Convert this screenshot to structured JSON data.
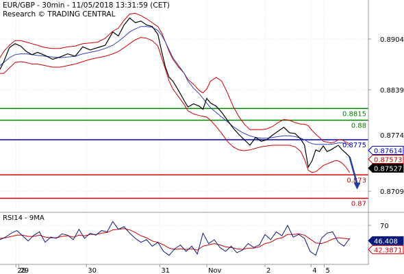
{
  "header": {
    "title": "EUR/GBP - 30min - 11/05/2018 13:31:59 (CET)",
    "subtitle": "Research © TRADING CENTRAL"
  },
  "colors": {
    "price": "#000000",
    "bollinger": "#cc0000",
    "moving_average": "#2f3fbf",
    "support": "#cc0000",
    "resistance": "#008000",
    "pivot": "#0000bb",
    "arrow": "#1f3fa0",
    "grid": "#e6e6e6",
    "rsi": "#0a1a7a",
    "rsi_ma": "#cc0000"
  },
  "chart_data": [
    {
      "type": "line",
      "name": "price-panel",
      "y_ticks": [
        0.8904,
        0.8839,
        0.8709
      ],
      "ylim": [
        0.8682,
        0.8954
      ],
      "grid": true,
      "x_labels": [
        "28",
        "29",
        "30",
        "31",
        "Nov",
        "2",
        "4",
        "5"
      ],
      "x_label_positions": [
        8.5,
        10,
        46,
        85,
        110,
        141,
        165.5,
        172.5
      ],
      "x_range": [
        0,
        196
      ],
      "price_x": [
        0,
        2,
        5,
        8,
        11,
        14,
        17,
        20,
        24,
        28,
        32,
        36,
        40,
        44,
        48,
        52,
        56,
        60,
        63,
        66,
        69,
        72,
        75,
        78,
        81,
        84,
        86,
        88,
        90,
        92,
        95,
        98,
        100,
        103,
        106,
        108,
        110,
        112,
        115,
        118,
        121,
        124,
        127,
        130,
        133,
        136,
        139,
        142,
        145,
        148,
        151,
        154,
        157,
        160,
        162,
        164,
        166,
        168,
        170,
        172,
        174,
        176,
        178,
        180,
        182,
        184,
        186
      ],
      "price_y": [
        0.8865,
        0.8875,
        0.8893,
        0.8898,
        0.8895,
        0.8888,
        0.8884,
        0.8887,
        0.8883,
        0.8878,
        0.8881,
        0.8885,
        0.8882,
        0.8894,
        0.889,
        0.8893,
        0.8896,
        0.8913,
        0.8908,
        0.8922,
        0.8931,
        0.8925,
        0.8927,
        0.8922,
        0.892,
        0.891,
        0.8888,
        0.8868,
        0.8855,
        0.885,
        0.8838,
        0.8825,
        0.8817,
        0.8821,
        0.8818,
        0.8814,
        0.8828,
        0.8822,
        0.8818,
        0.881,
        0.88,
        0.879,
        0.8782,
        0.8775,
        0.8768,
        0.8778,
        0.8773,
        0.8775,
        0.8781,
        0.8786,
        0.8791,
        0.8784,
        0.8783,
        0.8776,
        0.8768,
        0.874,
        0.8748,
        0.8762,
        0.876,
        0.8767,
        0.876,
        0.8762,
        0.8765,
        0.8768,
        0.8762,
        0.8758,
        0.8753
      ],
      "bollinger_upper_y": [
        0.888,
        0.8888,
        0.8896,
        0.8902,
        0.8902,
        0.89,
        0.8898,
        0.8896,
        0.8893,
        0.8892,
        0.8892,
        0.8894,
        0.8895,
        0.8898,
        0.8899,
        0.89,
        0.8905,
        0.8914,
        0.8918,
        0.8928,
        0.8936,
        0.8937,
        0.8934,
        0.893,
        0.8925,
        0.892,
        0.8912,
        0.89,
        0.8888,
        0.8878,
        0.8868,
        0.886,
        0.8852,
        0.8846,
        0.8838,
        0.8835,
        0.884,
        0.885,
        0.8855,
        0.885,
        0.8835,
        0.8818,
        0.8805,
        0.8795,
        0.8788,
        0.8788,
        0.8788,
        0.8789,
        0.8792,
        0.8797,
        0.8801,
        0.88,
        0.8797,
        0.8795,
        0.8795,
        0.8793,
        0.8787,
        0.8782,
        0.8778,
        0.8773,
        0.8772,
        0.8771,
        0.8772,
        0.8775,
        0.8775,
        0.8772,
        0.877
      ],
      "bollinger_lower_y": [
        0.886,
        0.886,
        0.8867,
        0.8874,
        0.8875,
        0.8874,
        0.8872,
        0.8872,
        0.887,
        0.8868,
        0.8868,
        0.887,
        0.8872,
        0.8875,
        0.8878,
        0.888,
        0.8882,
        0.8885,
        0.8888,
        0.8893,
        0.8898,
        0.8903,
        0.8906,
        0.8905,
        0.8902,
        0.8895,
        0.888,
        0.8865,
        0.885,
        0.884,
        0.883,
        0.882,
        0.8812,
        0.8808,
        0.8806,
        0.8805,
        0.8804,
        0.88,
        0.8792,
        0.8783,
        0.8773,
        0.8766,
        0.8762,
        0.8761,
        0.8762,
        0.8764,
        0.8766,
        0.8767,
        0.8768,
        0.8768,
        0.8768,
        0.8768,
        0.8766,
        0.876,
        0.875,
        0.8736,
        0.8733,
        0.8734,
        0.8738,
        0.8742,
        0.8744,
        0.8746,
        0.8748,
        0.8748,
        0.8745,
        0.874,
        0.8733
      ],
      "moving_average_y": [
        0.887,
        0.8874,
        0.888,
        0.8884,
        0.8885,
        0.8885,
        0.8884,
        0.8883,
        0.8882,
        0.8881,
        0.888,
        0.8881,
        0.8882,
        0.8885,
        0.8887,
        0.8889,
        0.8892,
        0.8896,
        0.8901,
        0.8907,
        0.8913,
        0.8917,
        0.892,
        0.892,
        0.8919,
        0.8915,
        0.8909,
        0.89,
        0.889,
        0.888,
        0.887,
        0.886,
        0.885,
        0.8841,
        0.8834,
        0.8828,
        0.8822,
        0.8816,
        0.881,
        0.8804,
        0.8798,
        0.8792,
        0.8787,
        0.8783,
        0.878,
        0.8778,
        0.8777,
        0.8777,
        0.8778,
        0.8779,
        0.878,
        0.878,
        0.8779,
        0.8777,
        0.8775,
        0.8772,
        0.877,
        0.8769,
        0.8769,
        0.8769,
        0.8769,
        0.8769,
        0.877,
        0.8771,
        0.8771,
        0.877,
        0.8768
      ],
      "forecast_arrow": {
        "from": [
          186,
          0.8753
        ],
        "to": [
          190,
          0.8713
        ]
      },
      "levels": [
        {
          "name": "resistance-2",
          "value": 0.8815,
          "label": "0.8815",
          "kind": "resistance"
        },
        {
          "name": "resistance-1",
          "value": 0.88,
          "label": "0.88",
          "kind": "resistance"
        },
        {
          "name": "pivot",
          "value": 0.8775,
          "label": "0.8775",
          "kind": "pivot"
        },
        {
          "name": "support-1",
          "value": 0.873,
          "label": "0.873",
          "kind": "support"
        },
        {
          "name": "support-2",
          "value": 0.87,
          "label": "0.87",
          "kind": "support"
        }
      ],
      "price_tags": [
        {
          "name": "last-price",
          "value": 0.87614,
          "label": "0.87614",
          "style": "blue"
        },
        {
          "name": "offer-price",
          "value": 0.87573,
          "label": "0.87573",
          "style": "red"
        },
        {
          "name": "bid-price",
          "value": 0.87527,
          "label": "0.87527",
          "style": "black"
        }
      ],
      "ghost_tick": "0.8774"
    },
    {
      "type": "line",
      "name": "rsi-panel",
      "title": "RSI14 - 9MA",
      "y_ticks": [
        70
      ],
      "ylim": [
        10,
        90
      ],
      "grid": true,
      "rsi_x": [
        0,
        3,
        6,
        9,
        12,
        15,
        18,
        21,
        24,
        27,
        30,
        33,
        36,
        39,
        42,
        45,
        48,
        51,
        54,
        57,
        60,
        63,
        66,
        69,
        72,
        75,
        78,
        81,
        84,
        87,
        90,
        93,
        96,
        99,
        102,
        105,
        108,
        111,
        114,
        117,
        120,
        123,
        126,
        129,
        132,
        135,
        138,
        141,
        144,
        147,
        150,
        153,
        156,
        159,
        162,
        165,
        168,
        171,
        174,
        177,
        180,
        183,
        186
      ],
      "rsi_y": [
        48,
        52,
        58,
        62,
        54,
        46,
        55,
        60,
        44,
        52,
        50,
        57,
        55,
        48,
        64,
        50,
        58,
        55,
        62,
        60,
        76,
        64,
        68,
        58,
        50,
        44,
        48,
        38,
        44,
        30,
        24,
        34,
        40,
        30,
        38,
        26,
        58,
        42,
        48,
        36,
        30,
        38,
        28,
        32,
        42,
        36,
        40,
        56,
        48,
        60,
        54,
        70,
        52,
        56,
        50,
        30,
        24,
        50,
        58,
        60,
        44,
        38,
        50
      ],
      "rsi_ma_y": [
        50,
        51,
        53,
        55,
        55,
        53,
        53,
        55,
        52,
        51,
        51,
        53,
        54,
        52,
        55,
        54,
        56,
        56,
        58,
        59,
        63,
        64,
        65,
        63,
        59,
        54,
        51,
        46,
        44,
        40,
        35,
        33,
        34,
        33,
        34,
        32,
        38,
        40,
        42,
        40,
        37,
        36,
        34,
        33,
        35,
        35,
        37,
        42,
        44,
        49,
        51,
        56,
        56,
        57,
        55,
        49,
        43,
        42,
        45,
        49,
        51,
        50,
        49
      ],
      "rsi_tags": [
        {
          "name": "rsi-value",
          "value": 46.408,
          "label": "46.408",
          "style": "blue"
        },
        {
          "name": "rsi-ma-value",
          "value": 42.3871,
          "label": "42.3871",
          "style": "red"
        }
      ]
    }
  ]
}
